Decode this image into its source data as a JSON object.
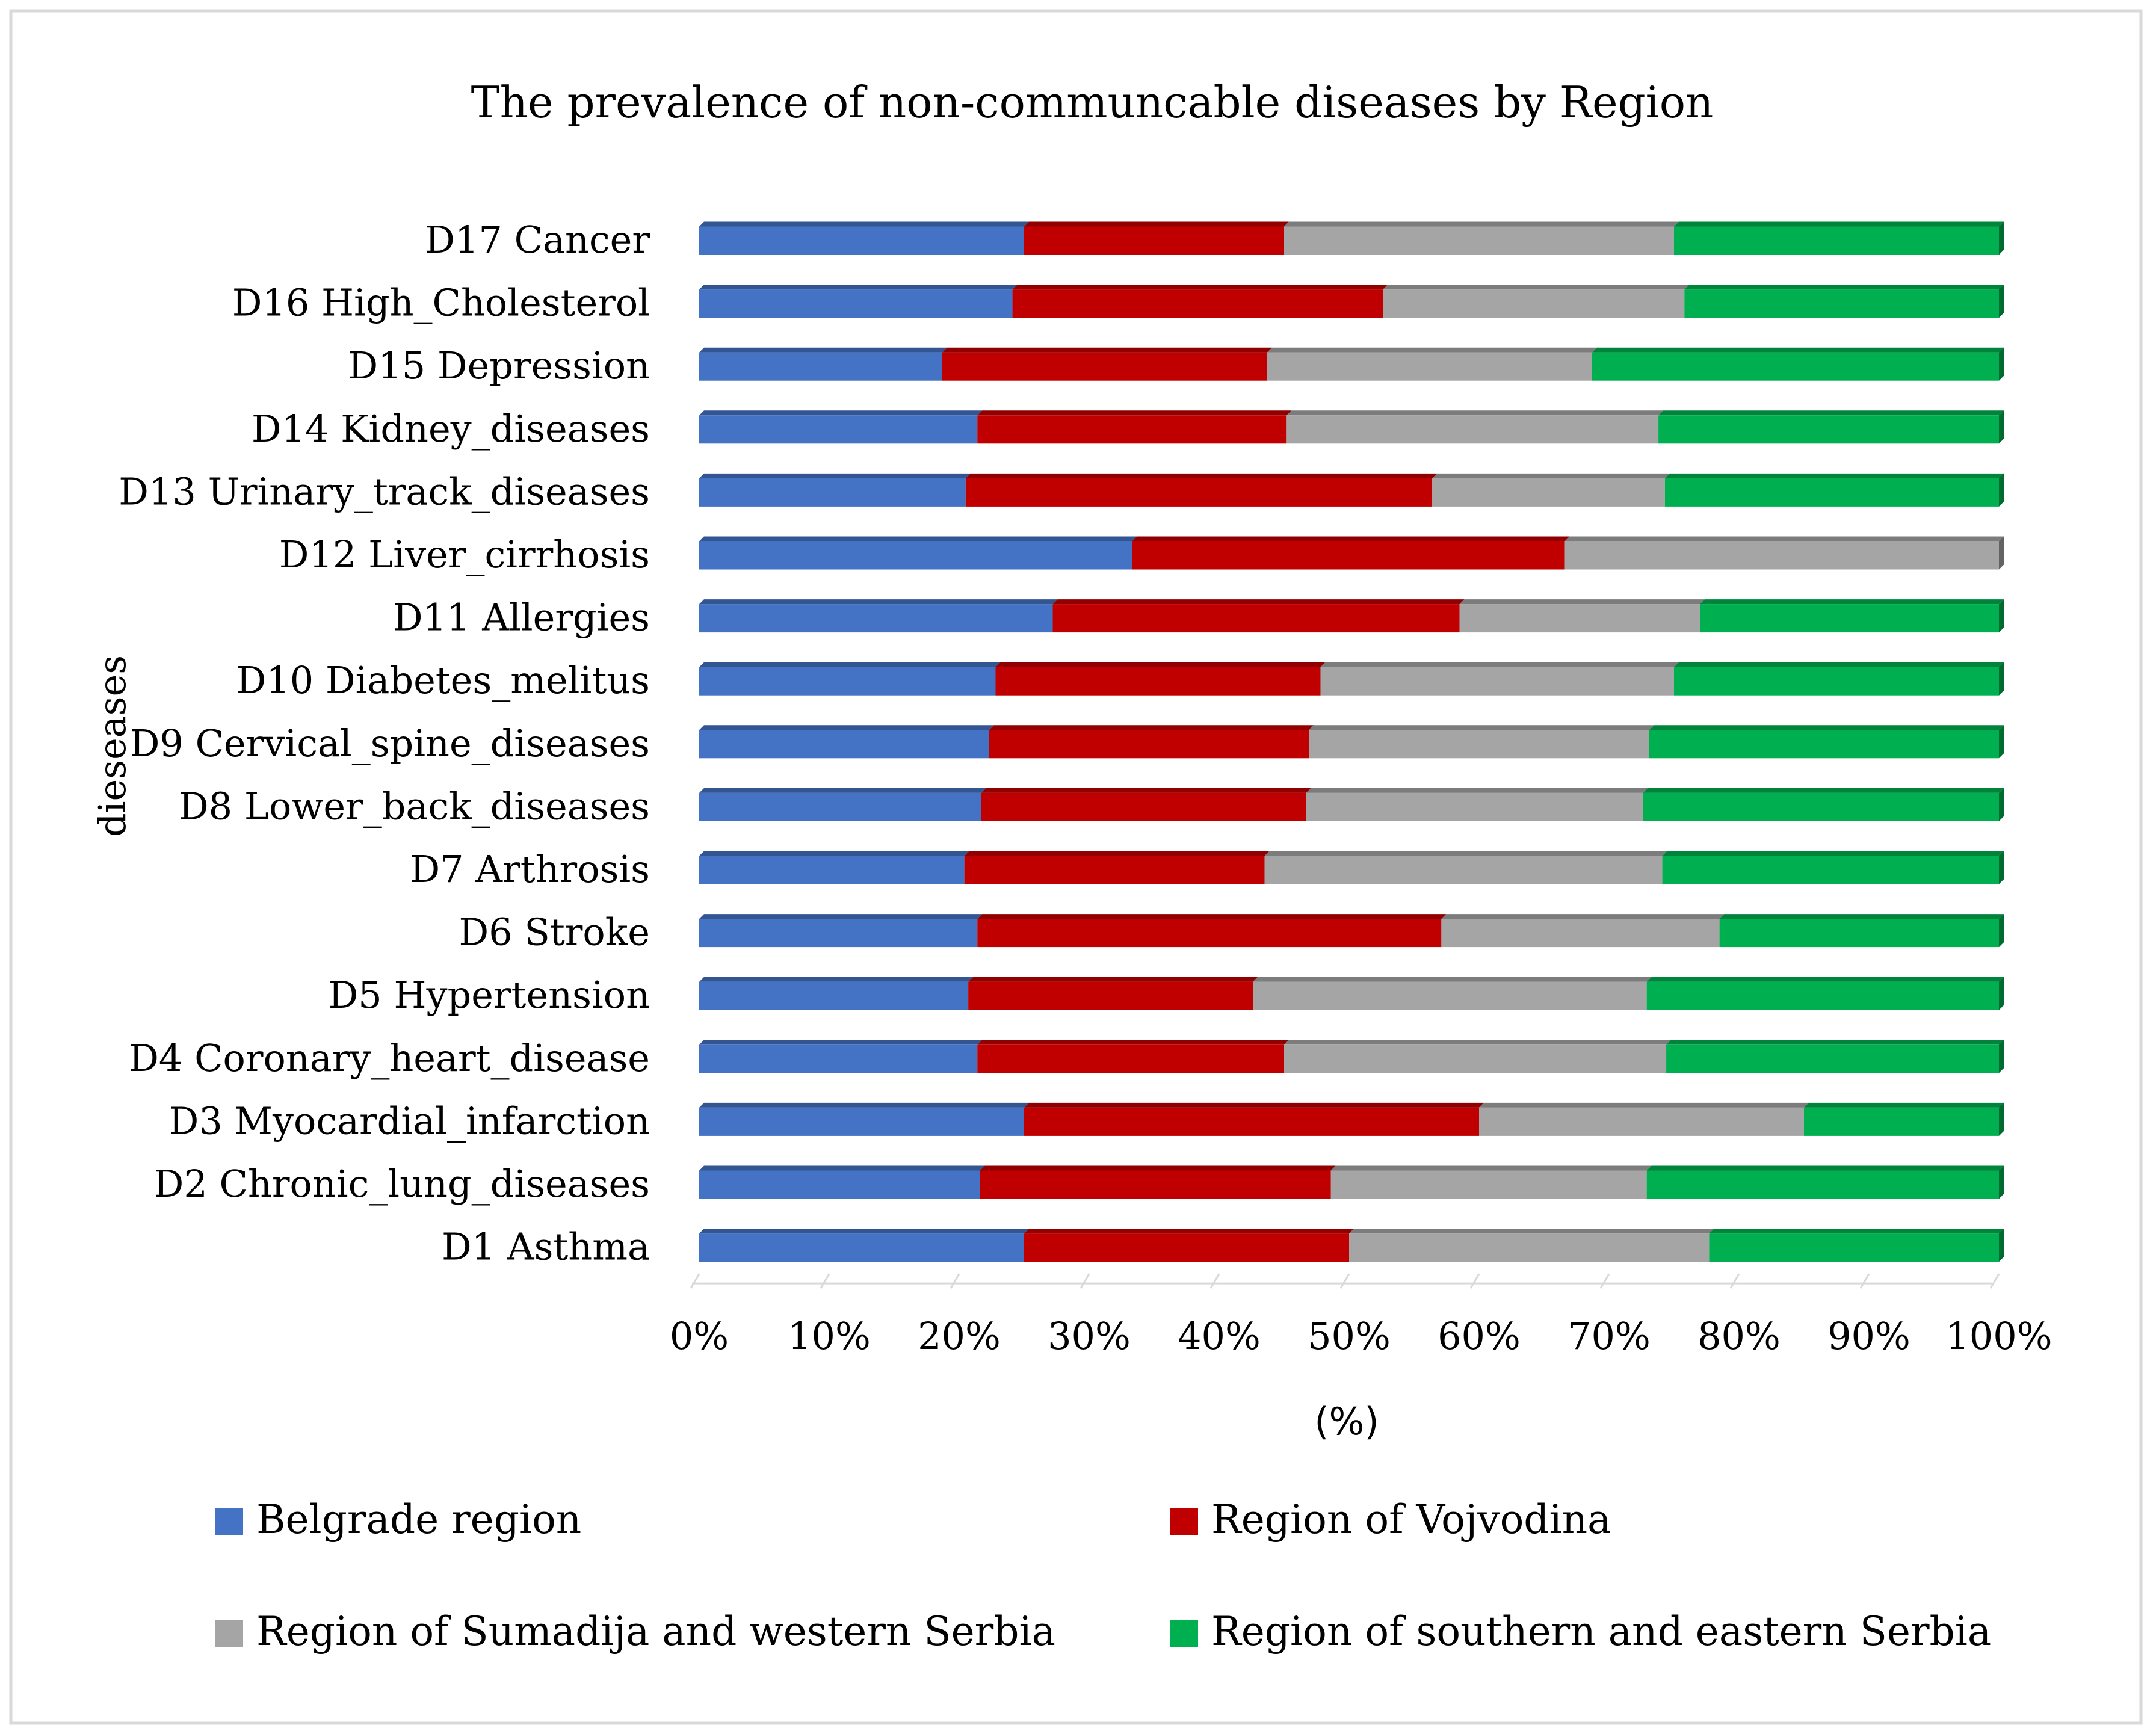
{
  "chart_data": {
    "type": "bar",
    "orientation": "horizontal",
    "stacked": "percent",
    "title": "The prevalence of non-communcable diseases by Region",
    "xlabel": "(%)",
    "ylabel": "dieseases",
    "xlim": [
      0,
      100
    ],
    "x_ticks": [
      "0%",
      "10%",
      "20%",
      "30%",
      "40%",
      "50%",
      "60%",
      "70%",
      "80%",
      "90%",
      "100%"
    ],
    "grid": false,
    "legend_position": "bottom",
    "categories": [
      "D17 Cancer",
      "D16 High_Cholesterol",
      "D15 Depression",
      "D14 Kidney_diseases",
      "D13 Urinary_track_diseases",
      "D12 Liver_cirrhosis",
      "D11 Allergies",
      "D10 Diabetes_melitus",
      "D9 Cervical_spine_diseases",
      "D8 Lower_back_diseases",
      "D7 Arthrosis",
      "D6 Stroke",
      "D5 Hypertension",
      "D4 Coronary_heart_disease",
      "D3 Myocardial_infarction",
      "D2 Chronic_lung_diseases",
      "D1 Asthma"
    ],
    "series": [
      {
        "name": "Belgrade region",
        "color": "#4472C4",
        "values": [
          25.0,
          24.1,
          18.7,
          21.4,
          20.5,
          33.3,
          27.2,
          22.8,
          22.3,
          21.7,
          20.4,
          21.4,
          20.7,
          21.4,
          25.0,
          21.6,
          25.0
        ]
      },
      {
        "name": "Region of Vojvodina",
        "color": "#C00000",
        "values": [
          20.0,
          28.5,
          25.0,
          23.8,
          35.9,
          33.3,
          31.3,
          25.0,
          24.6,
          25.0,
          23.1,
          35.7,
          21.9,
          23.6,
          35.0,
          27.0,
          25.0
        ]
      },
      {
        "name": "Region of Sumadija and western Serbia",
        "color": "#A5A5A5",
        "values": [
          30.0,
          23.2,
          25.0,
          28.6,
          17.9,
          33.4,
          18.5,
          27.2,
          26.2,
          25.9,
          30.6,
          21.4,
          30.3,
          29.4,
          25.0,
          24.3,
          27.7
        ]
      },
      {
        "name": "Region of southern and eastern Serbia",
        "color": "#00B050",
        "values": [
          25.0,
          24.2,
          31.3,
          26.2,
          25.7,
          0.0,
          23.0,
          25.0,
          26.9,
          27.4,
          25.9,
          21.5,
          27.1,
          25.6,
          15.0,
          27.1,
          22.3
        ]
      }
    ]
  }
}
